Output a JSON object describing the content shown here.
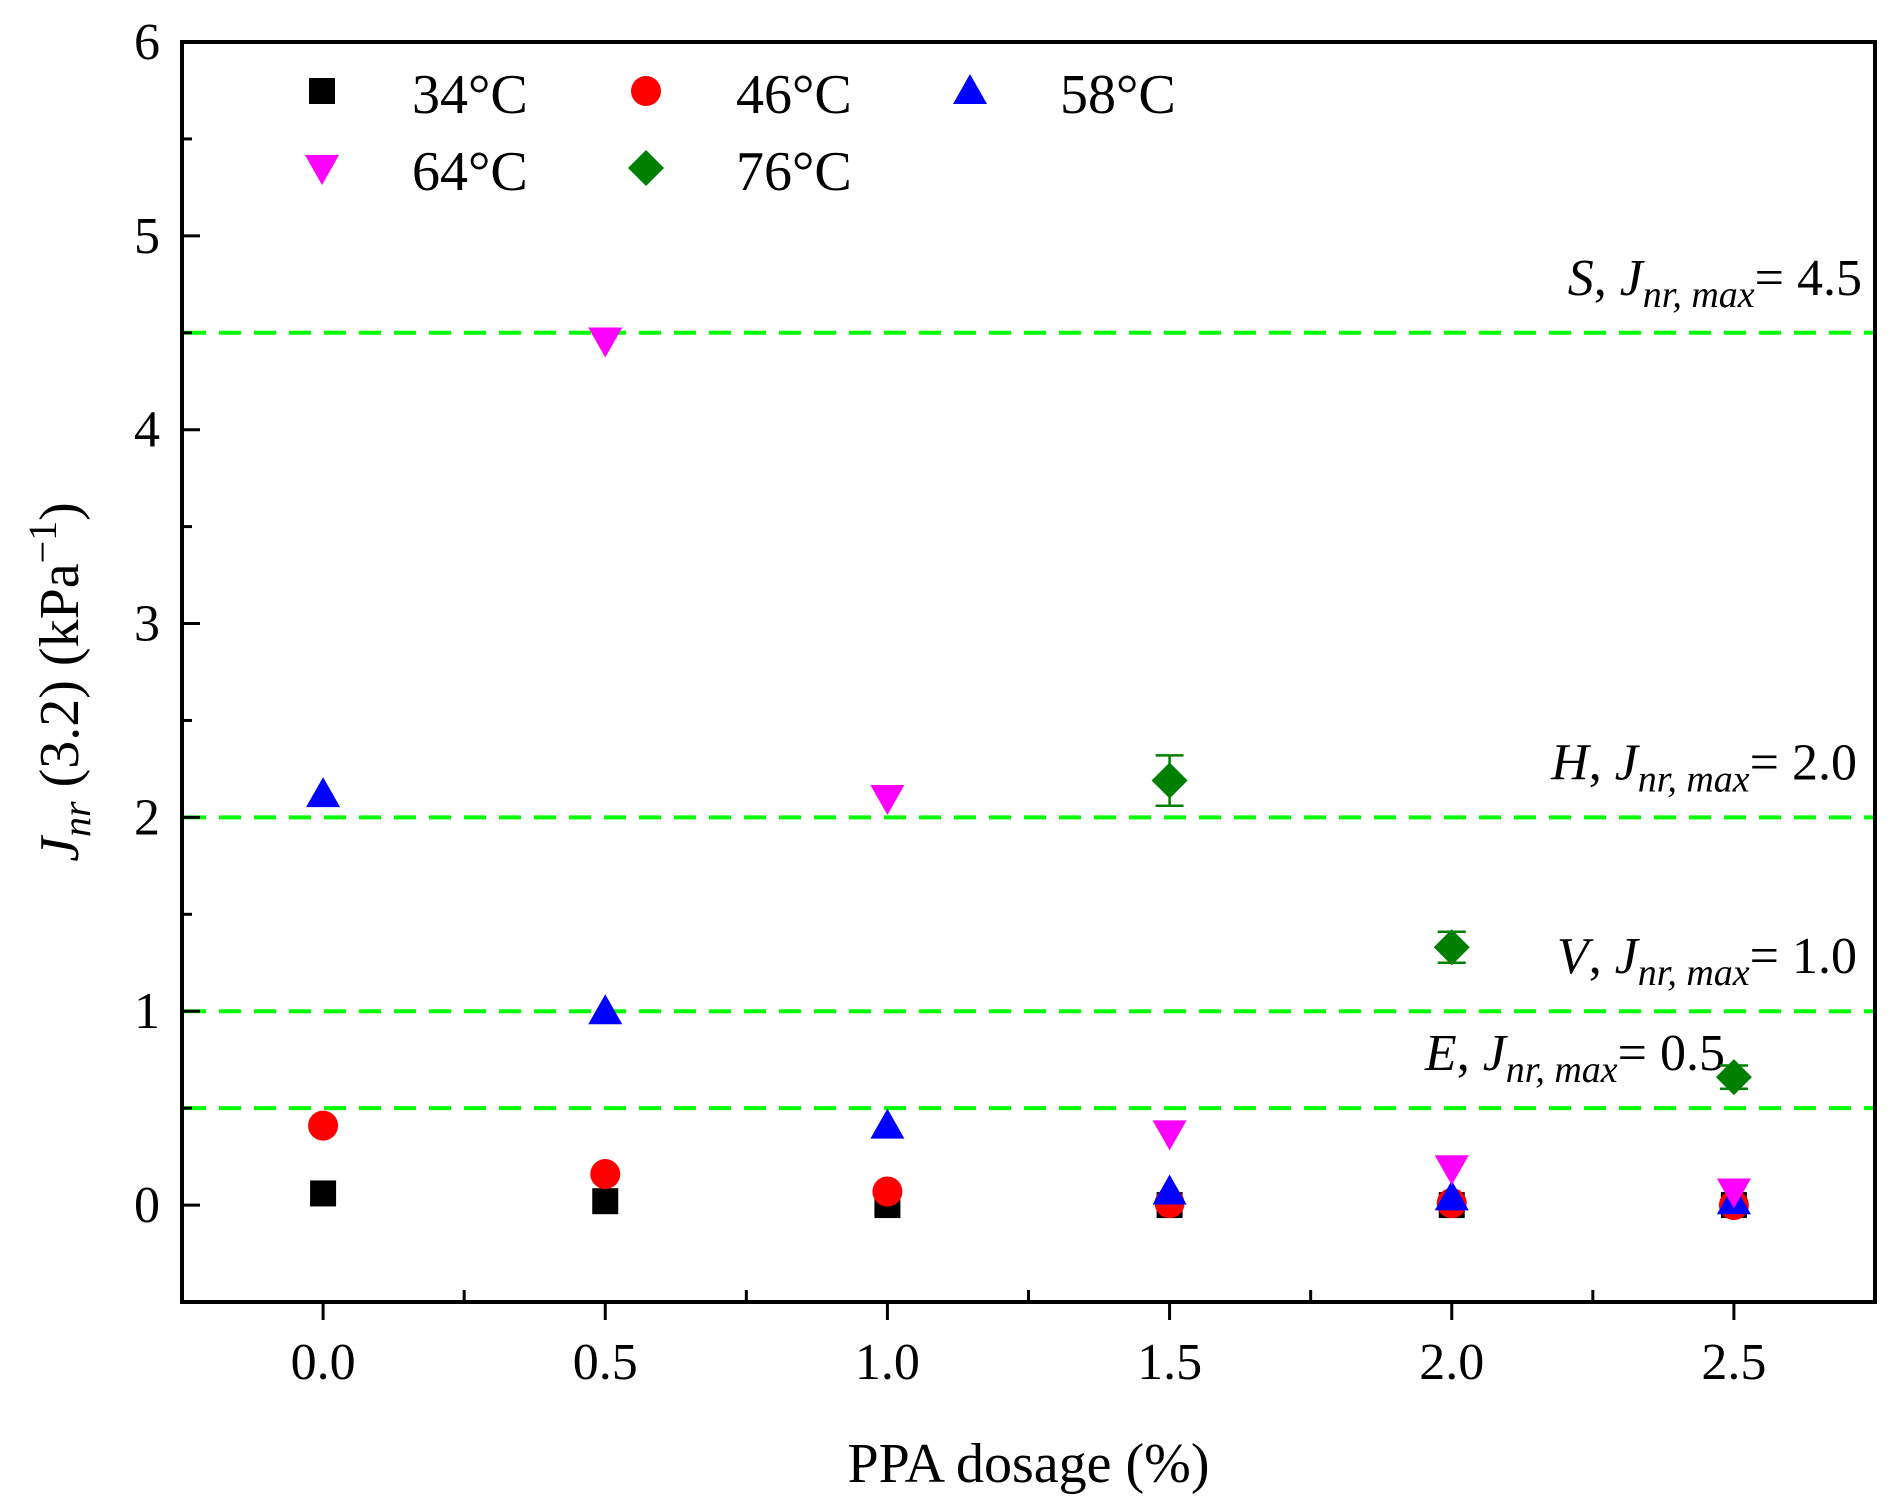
{
  "chart_data": {
    "type": "scatter",
    "xlabel": "PPA dosage (%)",
    "ylabel": {
      "main": "J",
      "sub": "nr",
      "rest": " (3.2) (kPa",
      "sup": "−1",
      "close": ")"
    },
    "xlim": [
      -0.25,
      2.75
    ],
    "ylim": [
      -0.5,
      6
    ],
    "x_ticks": [
      "0.0",
      "0.5",
      "1.0",
      "1.5",
      "2.0",
      "2.5"
    ],
    "x_tick_values": [
      0,
      0.5,
      1.0,
      1.5,
      2.0,
      2.5
    ],
    "y_ticks": [
      "0",
      "1",
      "2",
      "3",
      "4",
      "5",
      "6"
    ],
    "y_tick_values": [
      0,
      1,
      2,
      3,
      4,
      5,
      6
    ],
    "legend_position": "top-left",
    "series": [
      {
        "name": "34°C",
        "marker": "square",
        "color": "#000000",
        "x": [
          0,
          0.5,
          1.0,
          1.5,
          2.0,
          2.5
        ],
        "y": [
          0.06,
          0.02,
          0.0,
          0.0,
          0.0,
          0.0
        ],
        "err": [
          0,
          0,
          0,
          0,
          0,
          0
        ]
      },
      {
        "name": "46°C",
        "marker": "circle",
        "color": "#ff0000",
        "x": [
          0,
          0.5,
          1.0,
          1.5,
          2.0,
          2.5
        ],
        "y": [
          0.41,
          0.16,
          0.07,
          0.01,
          0.01,
          0.0
        ],
        "err": [
          0,
          0,
          0,
          0,
          0,
          0
        ]
      },
      {
        "name": "58°C",
        "marker": "triangle-up",
        "color": "#0000ff",
        "x": [
          0,
          0.5,
          1.0,
          1.5,
          2.0,
          2.5
        ],
        "y": [
          2.12,
          1.0,
          0.41,
          0.07,
          0.04,
          0.02
        ],
        "err": [
          0,
          0,
          0,
          0,
          0,
          0
        ]
      },
      {
        "name": "64°C",
        "marker": "triangle-down",
        "color": "#ff00ff",
        "x": [
          0.5,
          1.0,
          1.5,
          2.0,
          2.5
        ],
        "y": [
          4.46,
          2.1,
          0.37,
          0.19,
          0.07
        ],
        "err": [
          0,
          0,
          0,
          0,
          0
        ]
      },
      {
        "name": "76°C",
        "marker": "diamond",
        "color": "#008000",
        "x": [
          1.5,
          2.0,
          2.5
        ],
        "y": [
          2.19,
          1.33,
          0.66
        ],
        "err": [
          0.13,
          0.08,
          0.06
        ]
      }
    ],
    "reference_lines": [
      {
        "y": 4.5,
        "color": "#00ff00",
        "grade": "S",
        "sub": "nr, max",
        "value": "= 4.5"
      },
      {
        "y": 2.0,
        "color": "#00ff00",
        "grade": "H",
        "sub": "nr, max",
        "value": "= 2.0"
      },
      {
        "y": 1.0,
        "color": "#00ff00",
        "grade": "V",
        "sub": "nr, max",
        "value": "= 1.0"
      },
      {
        "y": 0.5,
        "color": "#00ff00",
        "grade": "E",
        "sub": "nr, max",
        "value": "= 0.5"
      }
    ],
    "reference_label_prefix": "J"
  }
}
